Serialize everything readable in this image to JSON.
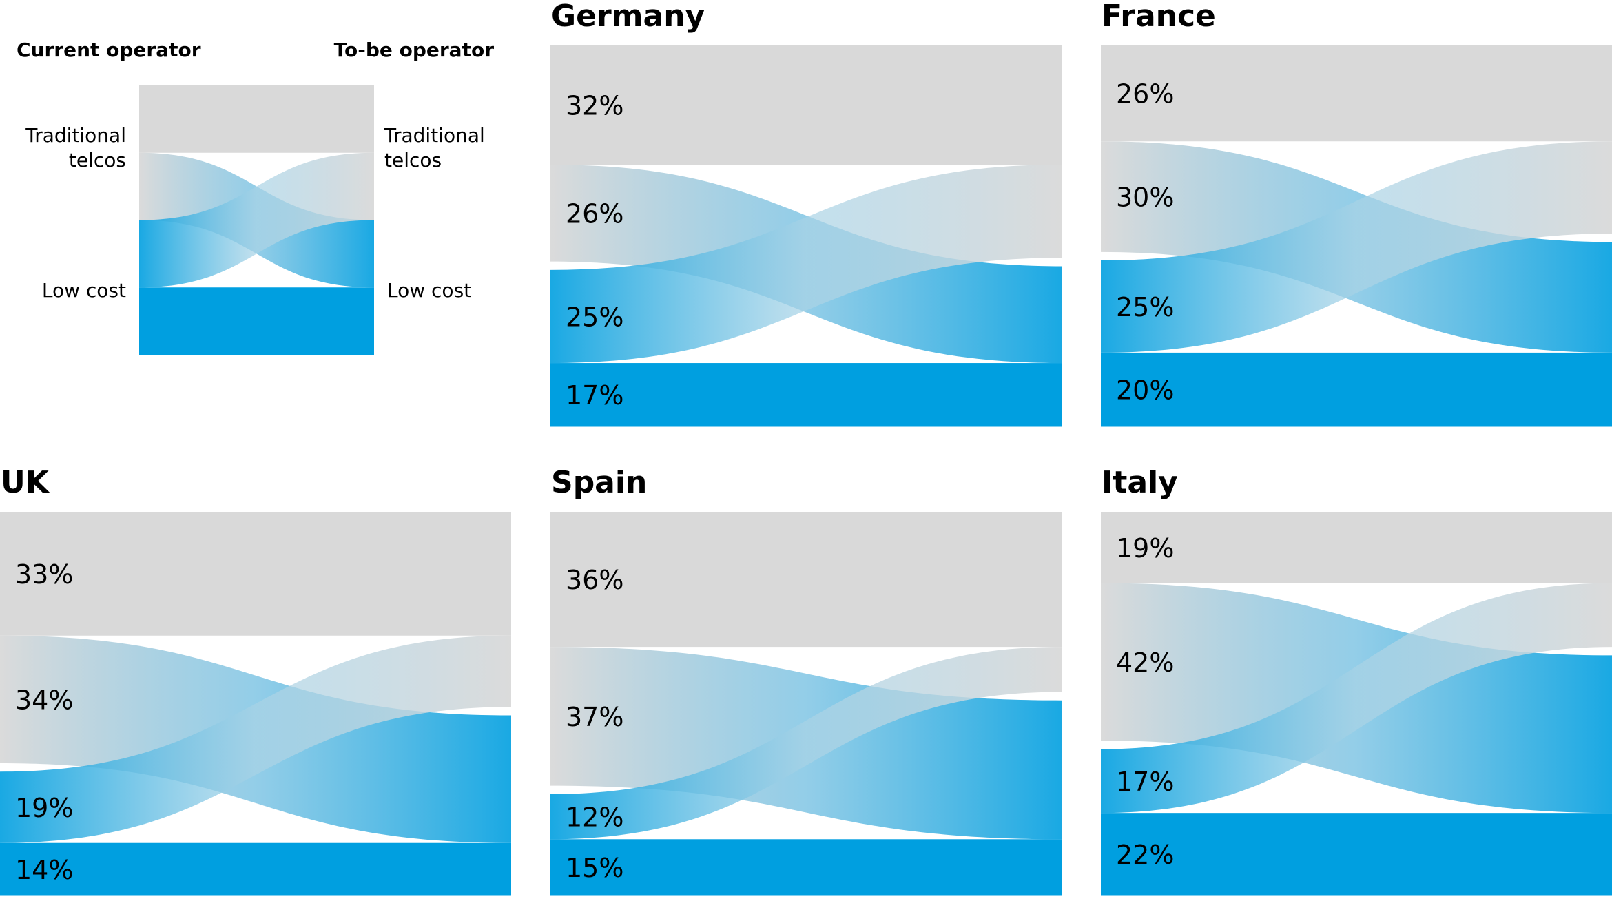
{
  "colors": {
    "traditional": "#d9d9d9",
    "low_cost": "#009fe0"
  },
  "legend": {
    "left_heading": "Current operator",
    "right_heading": "To-be operator",
    "traditional_line1": "Traditional",
    "traditional_line2": "telcos",
    "low_cost": "Low cost"
  },
  "chart_data": [
    {
      "type": "sankey",
      "title": "Germany",
      "stay_traditional": 32,
      "traditional_to_low_cost": 26,
      "low_cost_to_traditional": 25,
      "stay_low_cost": 17,
      "labels": [
        "32%",
        "26%",
        "25%",
        "17%"
      ]
    },
    {
      "type": "sankey",
      "title": "France",
      "stay_traditional": 26,
      "traditional_to_low_cost": 30,
      "low_cost_to_traditional": 25,
      "stay_low_cost": 20,
      "labels": [
        "26%",
        "30%",
        "25%",
        "20%"
      ]
    },
    {
      "type": "sankey",
      "title": "UK",
      "stay_traditional": 33,
      "traditional_to_low_cost": 34,
      "low_cost_to_traditional": 19,
      "stay_low_cost": 14,
      "labels": [
        "33%",
        "34%",
        "19%",
        "14%"
      ]
    },
    {
      "type": "sankey",
      "title": "Spain",
      "stay_traditional": 36,
      "traditional_to_low_cost": 37,
      "low_cost_to_traditional": 12,
      "stay_low_cost": 15,
      "labels": [
        "36%",
        "37%",
        "12%",
        "15%"
      ]
    },
    {
      "type": "sankey",
      "title": "Italy",
      "stay_traditional": 19,
      "traditional_to_low_cost": 42,
      "low_cost_to_traditional": 17,
      "stay_low_cost": 22,
      "labels": [
        "19%",
        "42%",
        "17%",
        "22%"
      ]
    }
  ]
}
